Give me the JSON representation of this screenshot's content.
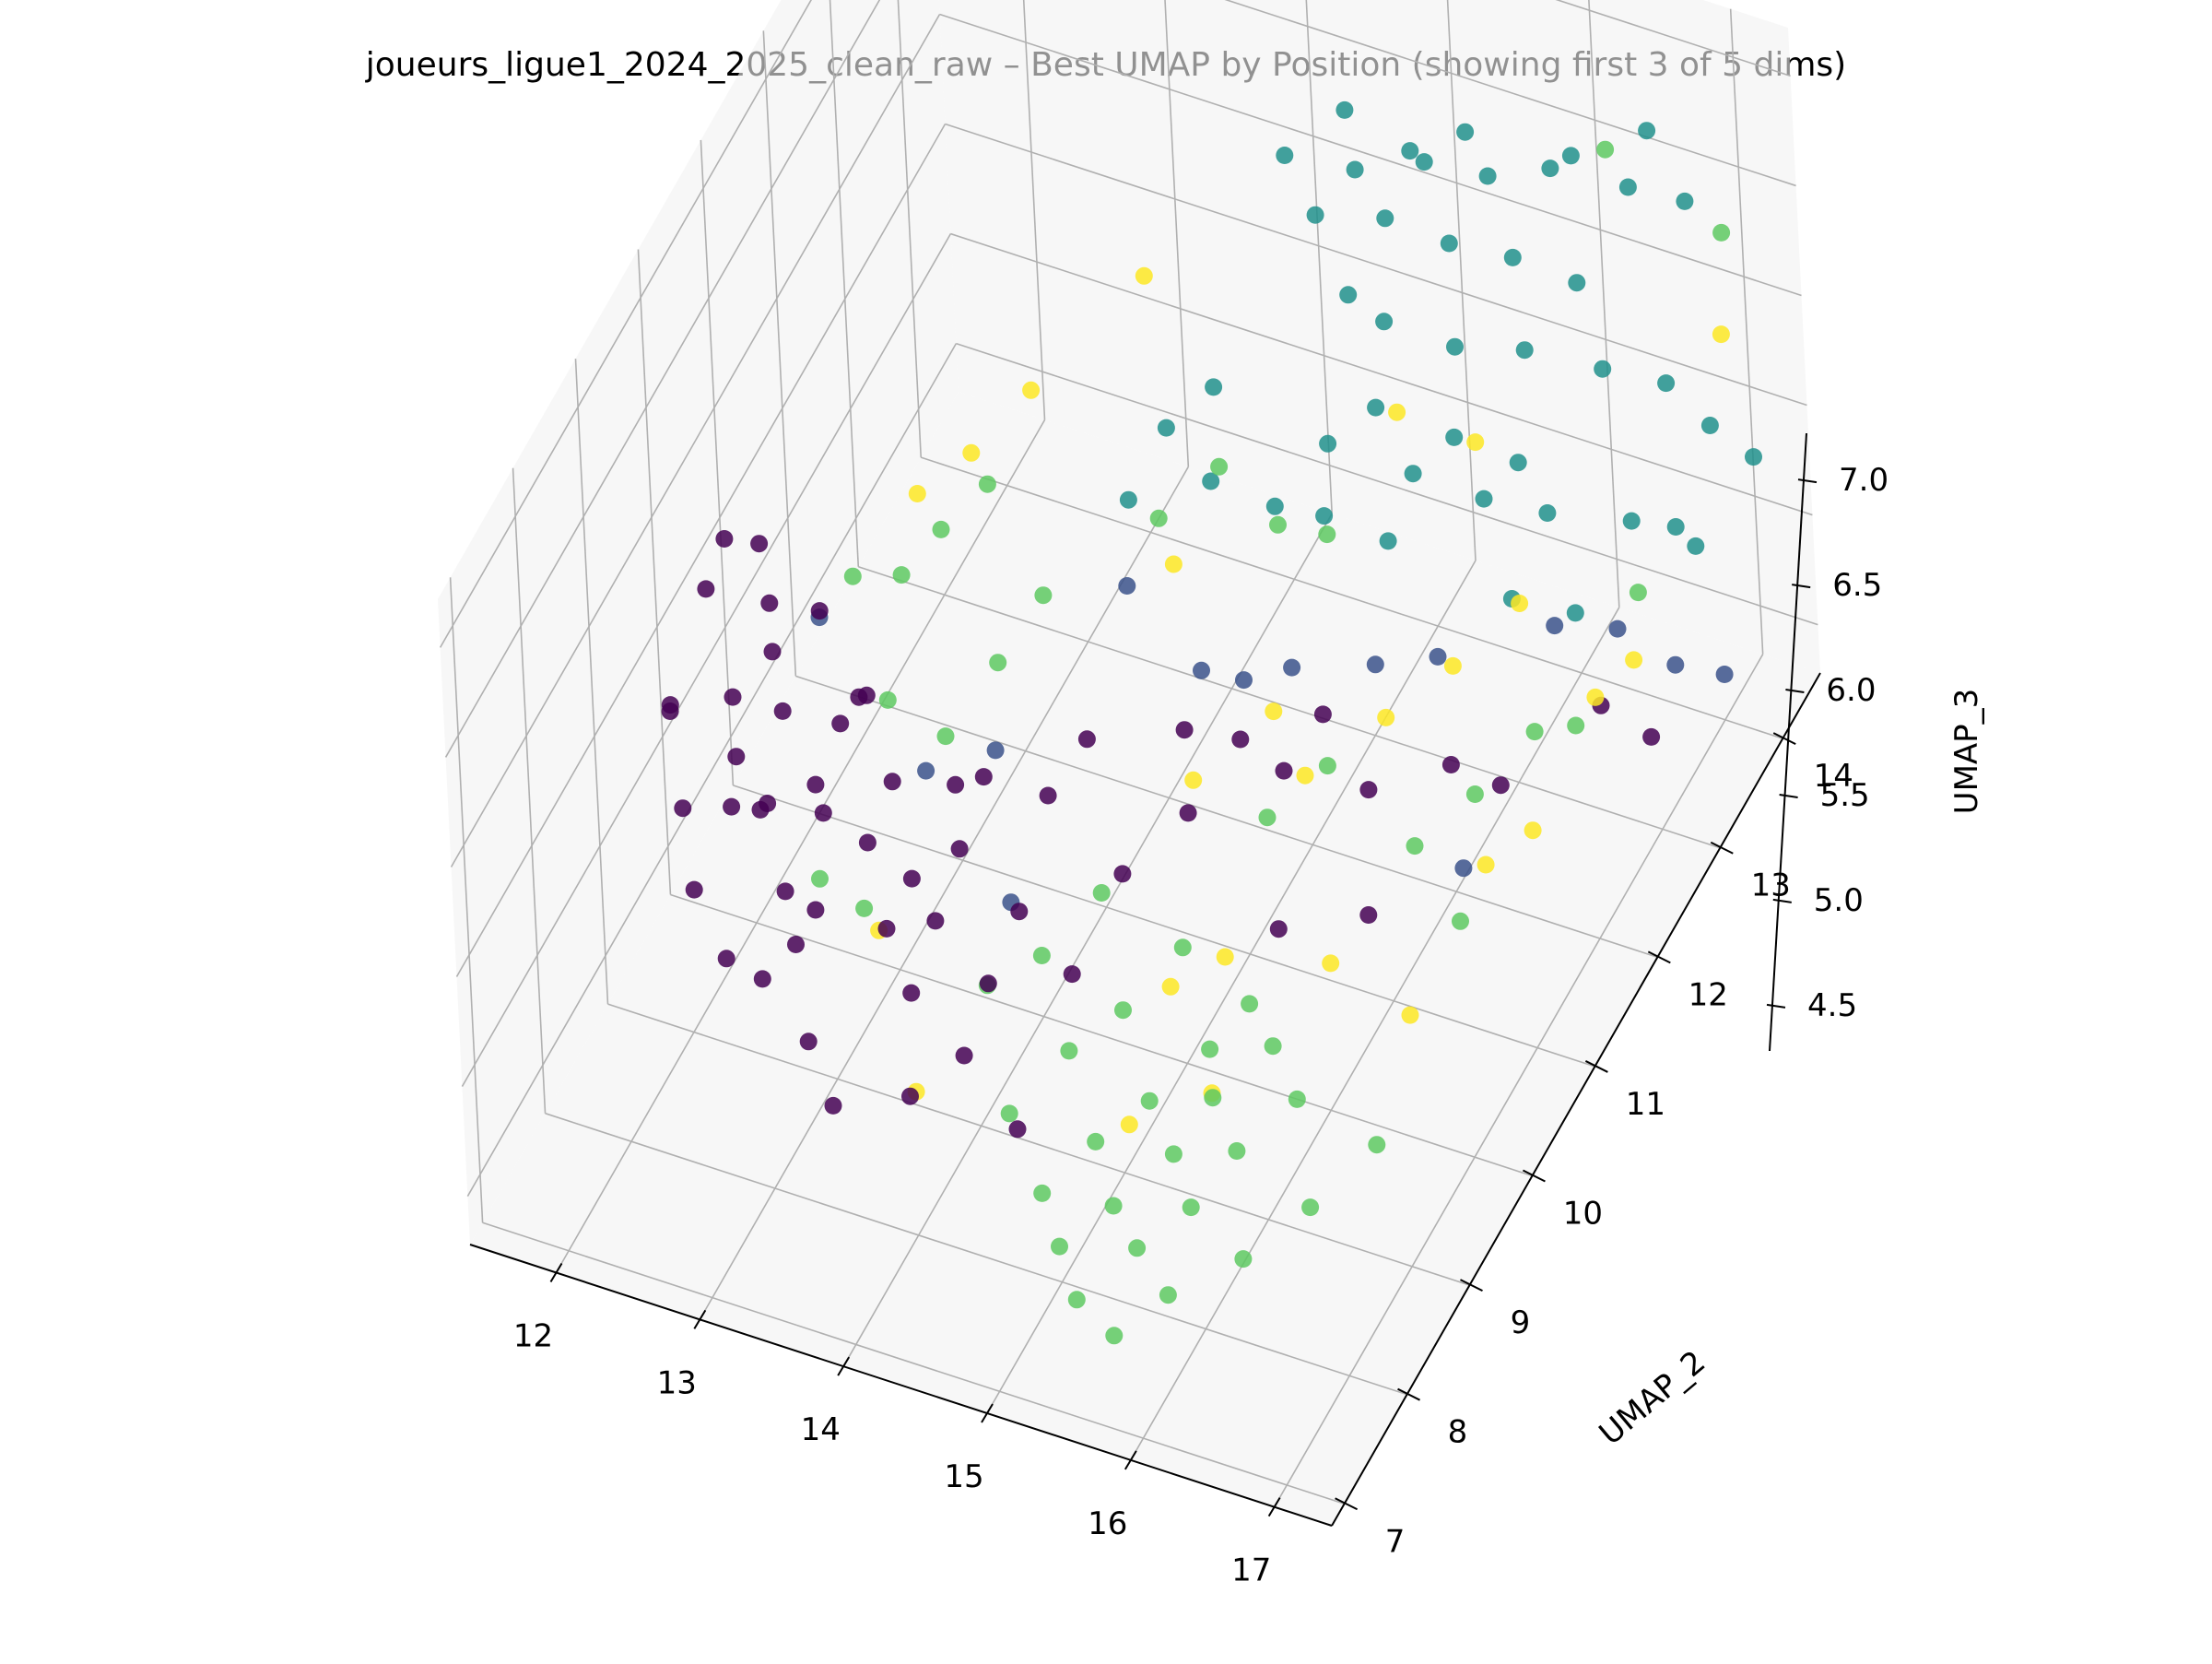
{
  "chart_data": {
    "type": "scatter",
    "projection": "3d",
    "title": "joueurs_ligue1_2024_2025_clean_raw – Best UMAP by Position (showing first 3 of 5 dims)",
    "xlabel": "",
    "ylabel": "UMAP_2",
    "zlabel": "UMAP_3",
    "x_ticks": [
      "12",
      "13",
      "14",
      "15",
      "16",
      "17"
    ],
    "y_ticks": [
      "7",
      "8",
      "9",
      "10",
      "11",
      "12",
      "13",
      "14"
    ],
    "z_ticks": [
      "4.5",
      "5.0",
      "5.5",
      "6.0",
      "6.5",
      "7.0"
    ],
    "xlim": [
      11.4,
      17.4
    ],
    "ylim": [
      6.8,
      14.6
    ],
    "zlim": [
      4.28,
      7.22
    ],
    "grid": true,
    "legend": "none",
    "colors": [
      "#440154",
      "#3b528b",
      "#21918c",
      "#5ec962",
      "#fde725"
    ],
    "series": [
      {
        "color": "#440154",
        "points": [
          [
            12.1,
            9.6,
            6.25
          ],
          [
            12.0,
            9.5,
            6.05
          ],
          [
            11.9,
            9.1,
            5.7
          ],
          [
            11.8,
            9.3,
            5.55
          ],
          [
            12.0,
            9.0,
            5.3
          ],
          [
            12.2,
            9.4,
            5.65
          ],
          [
            12.3,
            9.2,
            5.5
          ],
          [
            12.1,
            8.9,
            5.0
          ],
          [
            12.4,
            9.6,
            5.8
          ],
          [
            12.3,
            9.8,
            5.9
          ],
          [
            12.2,
            9.3,
            5.2
          ],
          [
            12.5,
            9.1,
            5.35
          ],
          [
            12.6,
            9.0,
            5.45
          ],
          [
            12.5,
            9.5,
            5.6
          ],
          [
            12.7,
            9.7,
            6.0
          ],
          [
            12.6,
            9.2,
            4.95
          ],
          [
            12.8,
            9.4,
            5.25
          ],
          [
            12.4,
            8.7,
            4.85
          ],
          [
            12.6,
            8.8,
            4.75
          ],
          [
            12.9,
            9.1,
            5.55
          ],
          [
            13.0,
            9.3,
            5.75
          ],
          [
            13.1,
            9.5,
            5.8
          ],
          [
            12.8,
            8.9,
            4.9
          ],
          [
            13.0,
            8.8,
            5.15
          ],
          [
            13.2,
            9.2,
            5.3
          ],
          [
            13.3,
            9.4,
            5.5
          ],
          [
            13.0,
            8.6,
            4.65
          ],
          [
            13.4,
            9.0,
            5.05
          ],
          [
            13.5,
            9.2,
            5.2
          ],
          [
            13.2,
            8.5,
            4.45
          ],
          [
            13.6,
            8.9,
            4.85
          ],
          [
            13.7,
            9.1,
            5.1
          ],
          [
            13.8,
            9.3,
            5.35
          ],
          [
            13.9,
            9.5,
            5.6
          ],
          [
            13.7,
            8.6,
            4.55
          ],
          [
            14.0,
            8.8,
            4.7
          ],
          [
            14.1,
            9.0,
            4.95
          ],
          [
            14.2,
            9.3,
            5.15
          ],
          [
            14.3,
            9.6,
            5.55
          ],
          [
            14.5,
            9.8,
            5.75
          ],
          [
            14.4,
            8.7,
            4.5
          ],
          [
            14.6,
            9.2,
            5.0
          ],
          [
            14.8,
            9.6,
            5.3
          ],
          [
            15.0,
            10.2,
            5.7
          ],
          [
            15.2,
            10.6,
            5.5
          ],
          [
            15.4,
            10.8,
            5.3
          ],
          [
            15.6,
            11.0,
            5.5
          ],
          [
            15.8,
            11.2,
            5.1
          ],
          [
            15.5,
            10.4,
            4.8
          ],
          [
            15.9,
            10.9,
            4.7
          ],
          [
            16.2,
            11.6,
            5.1
          ],
          [
            16.4,
            11.9,
            4.9
          ],
          [
            16.8,
            12.6,
            5.0
          ],
          [
            17.0,
            12.9,
            4.75
          ],
          [
            14.9,
            10.4,
            5.2
          ],
          [
            12.2,
            9.9,
            6.1
          ],
          [
            12.9,
            9.8,
            5.6
          ],
          [
            13.6,
            9.7,
            5.4
          ]
        ]
      },
      {
        "color": "#3b528b",
        "points": [
          [
            12.6,
            9.9,
            5.85
          ],
          [
            13.3,
            9.9,
            5.3
          ],
          [
            13.8,
            9.9,
            5.5
          ],
          [
            14.5,
            10.5,
            6.1
          ],
          [
            14.9,
            10.7,
            5.7
          ],
          [
            15.1,
            10.9,
            5.6
          ],
          [
            15.3,
            11.2,
            5.55
          ],
          [
            14.0,
            9.6,
            5.0
          ],
          [
            15.7,
            11.6,
            5.45
          ],
          [
            16.0,
            11.9,
            5.4
          ],
          [
            16.5,
            12.6,
            5.3
          ],
          [
            16.8,
            12.9,
            5.2
          ],
          [
            17.1,
            13.1,
            5.0
          ],
          [
            17.3,
            13.4,
            4.85
          ],
          [
            16.3,
            11.5,
            4.7
          ]
        ]
      },
      {
        "color": "#21918c",
        "points": [
          [
            14.9,
            12.3,
            7.25
          ],
          [
            15.2,
            12.7,
            7.05
          ],
          [
            15.5,
            13.1,
            6.95
          ],
          [
            15.8,
            13.4,
            6.8
          ],
          [
            16.1,
            13.7,
            6.75
          ],
          [
            16.5,
            14.0,
            6.6
          ],
          [
            16.8,
            14.2,
            6.5
          ],
          [
            15.0,
            12.5,
            6.9
          ],
          [
            15.3,
            12.9,
            6.75
          ],
          [
            15.6,
            13.2,
            6.55
          ],
          [
            15.9,
            13.5,
            6.4
          ],
          [
            16.2,
            13.8,
            6.2
          ],
          [
            15.4,
            12.6,
            6.45
          ],
          [
            15.7,
            13.0,
            6.2
          ],
          [
            16.0,
            13.4,
            6.05
          ],
          [
            16.4,
            13.7,
            5.9
          ],
          [
            16.7,
            14.0,
            5.75
          ],
          [
            16.9,
            14.2,
            5.5
          ],
          [
            17.1,
            14.4,
            5.3
          ],
          [
            15.2,
            12.1,
            6.1
          ],
          [
            15.6,
            12.5,
            5.85
          ],
          [
            15.9,
            12.9,
            5.6
          ],
          [
            16.2,
            13.2,
            5.45
          ],
          [
            16.6,
            13.6,
            5.3
          ],
          [
            16.9,
            13.9,
            5.1
          ],
          [
            14.6,
            11.6,
            6.05
          ],
          [
            14.9,
            11.9,
            5.85
          ],
          [
            15.1,
            12.2,
            5.7
          ],
          [
            15.4,
            12.5,
            5.5
          ],
          [
            14.3,
            11.0,
            6.2
          ],
          [
            14.4,
            11.4,
            6.35
          ],
          [
            14.7,
            11.5,
            6.55
          ],
          [
            15.3,
            12.3,
            6.7
          ],
          [
            15.6,
            12.0,
            6.4
          ],
          [
            16.0,
            12.3,
            6.2
          ],
          [
            16.3,
            12.6,
            6.0
          ],
          [
            15.8,
            13.1,
            7.15
          ],
          [
            16.3,
            13.6,
            6.9
          ],
          [
            16.7,
            13.9,
            6.95
          ],
          [
            15.5,
            12.9,
            7.1
          ],
          [
            15.1,
            12.8,
            7.25
          ],
          [
            16.4,
            12.2,
            5.6
          ],
          [
            16.7,
            12.5,
            5.45
          ],
          [
            17.2,
            13.0,
            5.7
          ]
        ]
      },
      {
        "color": "#5ec962",
        "points": [
          [
            12.9,
            9.8,
            6.15
          ],
          [
            13.1,
            10.1,
            6.05
          ],
          [
            13.3,
            10.3,
            6.2
          ],
          [
            13.5,
            10.6,
            6.3
          ],
          [
            13.2,
            9.6,
            5.75
          ],
          [
            13.5,
            9.8,
            5.55
          ],
          [
            13.8,
            10.0,
            5.85
          ],
          [
            14.0,
            10.3,
            6.05
          ],
          [
            12.8,
            9.3,
            5.0
          ],
          [
            13.2,
            9.1,
            5.05
          ],
          [
            13.9,
            9.4,
            4.7
          ],
          [
            14.2,
            9.6,
            4.8
          ],
          [
            14.5,
            9.9,
            5.0
          ],
          [
            14.3,
            8.8,
            4.5
          ],
          [
            14.6,
            9.1,
            4.7
          ],
          [
            14.9,
            9.3,
            4.85
          ],
          [
            15.2,
            9.6,
            5.05
          ],
          [
            14.6,
            8.6,
            4.3
          ],
          [
            14.9,
            8.8,
            4.5
          ],
          [
            15.2,
            9.0,
            4.65
          ],
          [
            15.5,
            9.3,
            4.8
          ],
          [
            15.7,
            9.5,
            4.95
          ],
          [
            14.8,
            8.4,
            4.2
          ],
          [
            15.1,
            8.6,
            4.35
          ],
          [
            15.4,
            8.9,
            4.5
          ],
          [
            15.6,
            9.1,
            4.7
          ],
          [
            15.9,
            9.4,
            4.85
          ],
          [
            15.0,
            8.2,
            4.1
          ],
          [
            15.3,
            8.5,
            4.25
          ],
          [
            15.6,
            8.7,
            4.4
          ],
          [
            15.8,
            9.0,
            4.55
          ],
          [
            16.1,
            9.3,
            4.7
          ],
          [
            15.3,
            8.1,
            4.05
          ],
          [
            15.6,
            8.3,
            4.2
          ],
          [
            16.0,
            8.6,
            4.3
          ],
          [
            16.3,
            9.0,
            4.4
          ],
          [
            16.6,
            9.4,
            4.55
          ],
          [
            15.7,
            9.9,
            5.6
          ],
          [
            16.0,
            10.2,
            5.75
          ],
          [
            14.7,
            10.6,
            6.4
          ],
          [
            15.0,
            10.9,
            6.55
          ],
          [
            15.3,
            11.1,
            6.25
          ],
          [
            15.5,
            11.4,
            6.1
          ],
          [
            16.3,
            10.8,
            5.15
          ],
          [
            16.6,
            11.1,
            5.3
          ],
          [
            16.9,
            11.4,
            5.5
          ],
          [
            17.0,
            11.8,
            5.35
          ],
          [
            16.5,
            11.0,
            4.75
          ],
          [
            17.2,
            12.4,
            5.7
          ],
          [
            16.4,
            13.9,
            6.8
          ],
          [
            17.0,
            14.3,
            6.35
          ]
        ]
      },
      {
        "color": "#fde725",
        "points": [
          [
            13.0,
            10.6,
            6.15
          ],
          [
            13.3,
            10.8,
            6.3
          ],
          [
            13.6,
            11.1,
            6.5
          ],
          [
            14.2,
            11.6,
            6.9
          ],
          [
            13.2,
            9.3,
            4.85
          ],
          [
            13.6,
            8.9,
            4.4
          ],
          [
            15.5,
            10.9,
            5.25
          ],
          [
            15.9,
            11.3,
            5.4
          ],
          [
            16.2,
            11.7,
            5.5
          ],
          [
            16.5,
            12.1,
            5.65
          ],
          [
            14.9,
            10.5,
            5.3
          ],
          [
            15.3,
            10.9,
            5.5
          ],
          [
            15.1,
            9.6,
            4.85
          ],
          [
            15.4,
            9.8,
            4.95
          ],
          [
            15.0,
            9.1,
            4.45
          ],
          [
            15.5,
            9.3,
            4.6
          ],
          [
            16.0,
            10.1,
            4.9
          ],
          [
            16.4,
            10.4,
            4.6
          ],
          [
            16.7,
            11.0,
            5.05
          ],
          [
            16.9,
            11.3,
            5.1
          ],
          [
            17.1,
            11.9,
            5.45
          ],
          [
            15.7,
            12.1,
            6.35
          ],
          [
            16.1,
            12.4,
            6.15
          ],
          [
            17.3,
            13.6,
            6.3
          ],
          [
            17.0,
            12.7,
            5.2
          ],
          [
            14.5,
            11.2,
            5.85
          ]
        ]
      }
    ]
  }
}
